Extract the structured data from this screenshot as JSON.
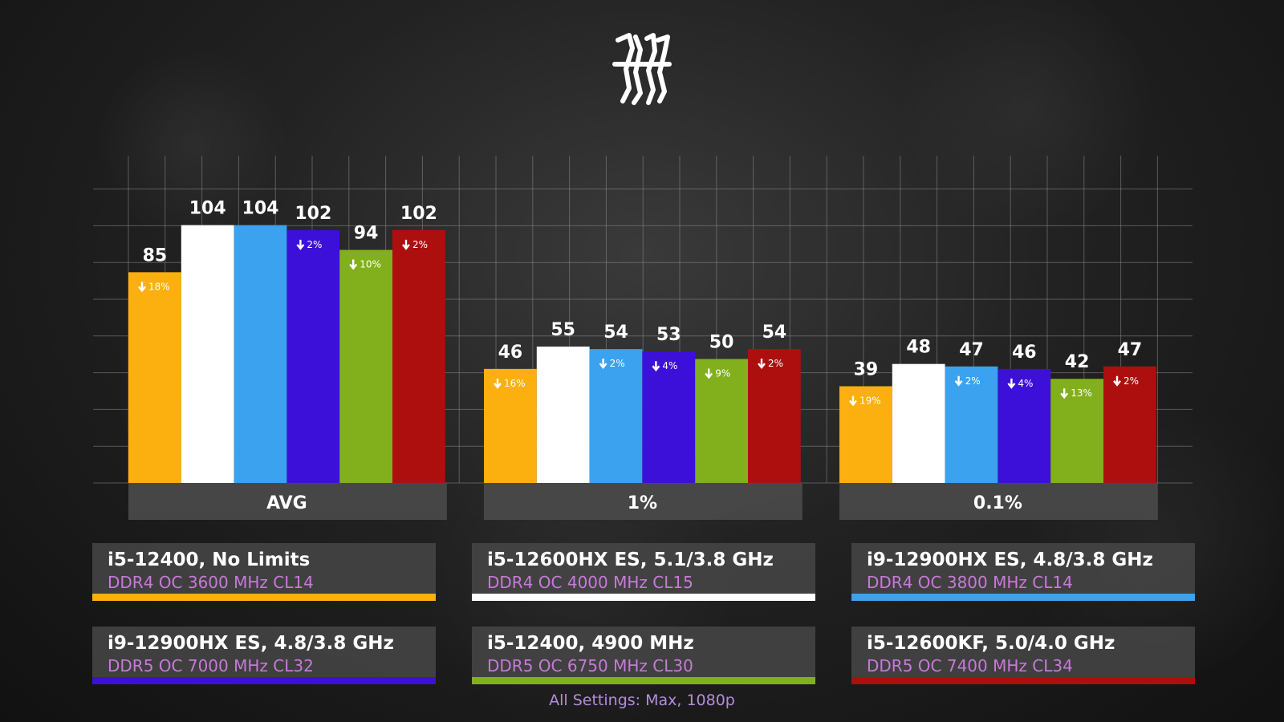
{
  "chart_data": {
    "type": "bar",
    "categories": [
      "AVG",
      "1%",
      "0.1%"
    ],
    "series": [
      {
        "name": "i5-12400, No Limits",
        "memory": "DDR4 OC 3600 MHz CL14",
        "color": "#fbb00f",
        "values": [
          85,
          46,
          39
        ],
        "drops": [
          "18%",
          "16%",
          "19%"
        ]
      },
      {
        "name": "i5-12600HX ES, 5.1/3.8 GHz",
        "memory": "DDR4 OC 4000 MHz CL15",
        "color": "#ffffff",
        "values": [
          104,
          55,
          48
        ],
        "drops": [
          "",
          "",
          ""
        ]
      },
      {
        "name": "i9-12900HX ES, 4.8/3.8 GHz",
        "memory": "DDR4 OC 3800 MHz CL14",
        "color": "#3aa2ef",
        "values": [
          104,
          54,
          47
        ],
        "drops": [
          "",
          "2%",
          "2%"
        ]
      },
      {
        "name": "i9-12900HX ES, 4.8/3.8 GHz",
        "memory": "DDR5 OC 7000 MHz CL32",
        "color": "#3c10d8",
        "values": [
          102,
          53,
          46
        ],
        "drops": [
          "2%",
          "4%",
          "4%"
        ]
      },
      {
        "name": "i5-12400, 4900 MHz",
        "memory": "DDR5 OC 6750 MHz CL30",
        "color": "#82b01d",
        "values": [
          94,
          50,
          42
        ],
        "drops": [
          "10%",
          "9%",
          "13%"
        ]
      },
      {
        "name": "i5-12600KF, 5.0/4.0 GHz",
        "memory": "DDR5 OC 7400 MHz CL34",
        "color": "#ad0f0f",
        "values": [
          102,
          54,
          47
        ],
        "drops": [
          "2%",
          "2%",
          "2%"
        ]
      }
    ],
    "ylim": [
      0,
      130
    ],
    "grid": true,
    "legend_placement": "bottom",
    "title": "",
    "xlabel": "",
    "ylabel": ""
  },
  "legend_order": [
    0,
    1,
    2,
    3,
    4,
    5
  ],
  "footnote": "All Settings: Max, 1080p",
  "drop_icon": "down-arrow-icon",
  "logo_icon": "brand-logo-icon",
  "colors": {
    "grid": "#8a8a8a",
    "category_box": "#4a4a4a",
    "memory_text": "#c77ad8",
    "footnote": "#b38ce0"
  }
}
